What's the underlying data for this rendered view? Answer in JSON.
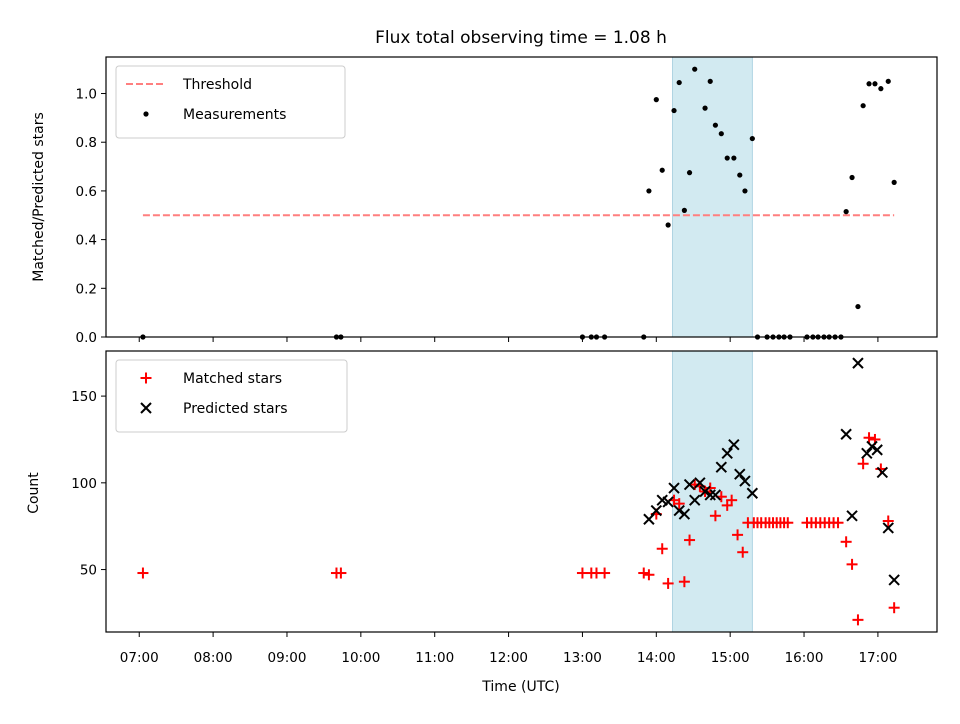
{
  "chart_data": [
    {
      "type": "scatter",
      "title": "Flux total observing time = 1.08 h",
      "xlabel": "",
      "ylabel": "Matched/Predicted stars",
      "xlim_hours": [
        6.55,
        17.8
      ],
      "ylim": [
        0,
        1.15
      ],
      "yticks": [
        0.0,
        0.2,
        0.4,
        0.6,
        0.8,
        1.0
      ],
      "ytick_labels": [
        "0.0",
        "0.2",
        "0.4",
        "0.6",
        "0.8",
        "1.0"
      ],
      "highlight_span_hours": [
        14.22,
        15.3
      ],
      "highlight_color": "#add8e6",
      "legend_position": "upper-left",
      "threshold": {
        "name": "Threshold",
        "y": 0.5,
        "x_range_hours": [
          7.05,
          17.22
        ],
        "color": "#ff7f7f"
      },
      "series": [
        {
          "name": "Measurements",
          "color": "#000000",
          "marker": "dot",
          "x": [
            7.05,
            9.67,
            9.73,
            13.0,
            13.12,
            13.19,
            13.3,
            13.83,
            13.9,
            14.0,
            14.08,
            14.16,
            14.24,
            14.31,
            14.38,
            14.45,
            14.52,
            14.66,
            14.73,
            14.8,
            14.88,
            14.96,
            15.05,
            15.13,
            15.2,
            15.3,
            15.37,
            15.5,
            15.58,
            15.66,
            15.73,
            15.81,
            16.04,
            16.12,
            16.19,
            16.27,
            16.34,
            16.42,
            16.5,
            16.57,
            16.65,
            16.73,
            16.8,
            16.88,
            16.96,
            17.04,
            17.14,
            17.22
          ],
          "y": [
            0.0,
            0.0,
            0.0,
            0.0,
            0.0,
            0.0,
            0.0,
            0.0,
            0.6,
            0.975,
            0.685,
            0.46,
            0.93,
            1.045,
            0.52,
            0.675,
            1.1,
            0.94,
            1.05,
            0.87,
            0.835,
            0.735,
            0.735,
            0.665,
            0.6,
            0.815,
            0.0,
            0.0,
            0.0,
            0.0,
            0.0,
            0.0,
            0.0,
            0.0,
            0.0,
            0.0,
            0.0,
            0.0,
            0.0,
            0.515,
            0.655,
            0.125,
            0.95,
            1.04,
            1.04,
            1.02,
            1.05,
            0.635
          ]
        }
      ]
    },
    {
      "type": "scatter",
      "xlabel": "Time (UTC)",
      "ylabel": "Count",
      "xlim_hours": [
        6.55,
        17.8
      ],
      "ylim": [
        14,
        176
      ],
      "yticks": [
        50,
        100,
        150
      ],
      "ytick_labels": [
        "50",
        "100",
        "150"
      ],
      "xticks_hours": [
        7,
        8,
        9,
        10,
        11,
        12,
        13,
        14,
        15,
        16,
        17
      ],
      "xtick_labels": [
        "07:00",
        "08:00",
        "09:00",
        "10:00",
        "11:00",
        "12:00",
        "13:00",
        "14:00",
        "15:00",
        "16:00",
        "17:00"
      ],
      "highlight_span_hours": [
        14.22,
        15.3
      ],
      "highlight_color": "#add8e6",
      "legend_position": "upper-left",
      "series": [
        {
          "name": "Matched stars",
          "color": "#ff0000",
          "marker": "plus",
          "x": [
            7.05,
            9.67,
            9.73,
            13.0,
            13.12,
            13.19,
            13.3,
            13.83,
            13.9,
            14.0,
            14.08,
            14.16,
            14.24,
            14.31,
            14.38,
            14.45,
            14.52,
            14.59,
            14.66,
            14.73,
            14.8,
            14.88,
            14.96,
            15.02,
            15.1,
            15.17,
            15.24,
            15.32,
            15.37,
            15.42,
            15.48,
            15.53,
            15.58,
            15.63,
            15.68,
            15.73,
            15.78,
            16.04,
            16.1,
            16.16,
            16.22,
            16.28,
            16.34,
            16.4,
            16.46,
            16.57,
            16.65,
            16.73,
            16.8,
            16.88,
            16.96,
            17.04,
            17.14,
            17.22
          ],
          "y": [
            48,
            48,
            48,
            48,
            48,
            48,
            48,
            48,
            47,
            82,
            62,
            42,
            90,
            88,
            43,
            67,
            99,
            98,
            95,
            97,
            81,
            92,
            87,
            90,
            70,
            60,
            77,
            77,
            77,
            77,
            77,
            77,
            77,
            77,
            77,
            77,
            77,
            77,
            77,
            77,
            77,
            77,
            77,
            77,
            77,
            66,
            53,
            21,
            111,
            126,
            125,
            108,
            78,
            28
          ]
        },
        {
          "name": "Predicted stars",
          "color": "#000000",
          "marker": "x",
          "x": [
            13.9,
            14.0,
            14.08,
            14.16,
            14.24,
            14.31,
            14.38,
            14.45,
            14.52,
            14.59,
            14.66,
            14.73,
            14.8,
            14.88,
            14.96,
            15.05,
            15.13,
            15.2,
            15.3,
            16.57,
            16.65,
            16.73,
            16.85,
            16.92,
            16.99,
            17.06,
            17.14,
            17.22
          ],
          "y": [
            79,
            84,
            90,
            89,
            97,
            84,
            82,
            99,
            90,
            100,
            95,
            93,
            93,
            109,
            117,
            122,
            105,
            101,
            94,
            128,
            81,
            169,
            117,
            121,
            119,
            106,
            74,
            44
          ]
        }
      ]
    }
  ]
}
